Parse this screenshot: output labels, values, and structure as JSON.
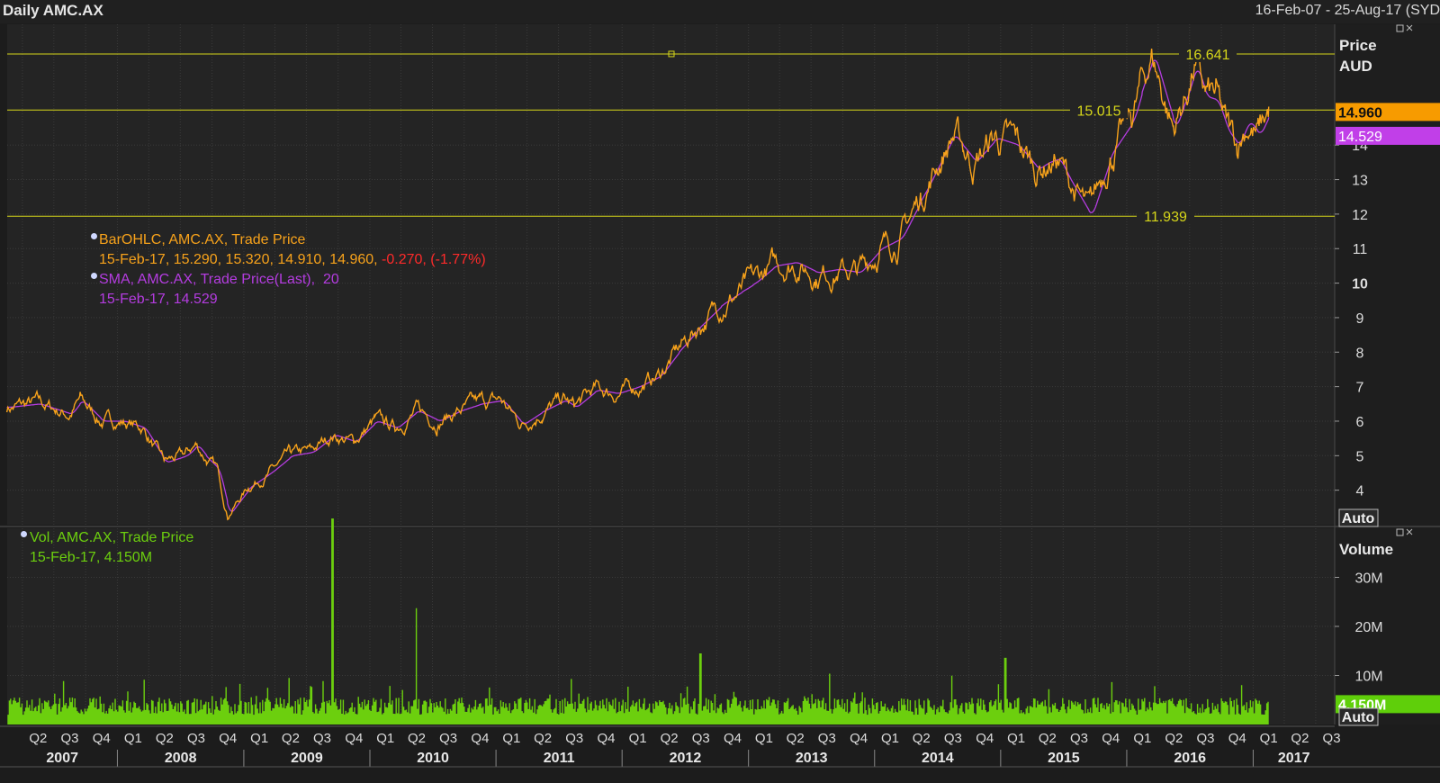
{
  "window": {
    "title": "Daily AMC.AX",
    "date_range": "16-Feb-07 - 25-Aug-17 (SYD"
  },
  "colors": {
    "background": "#1c1c1c",
    "plot_bg": "#242424",
    "price": "#f7a21b",
    "sma": "#b43ce0",
    "volume": "#6ccf0e",
    "hline": "#d6d61a",
    "loss": "#ff2a2a"
  },
  "legends": {
    "ohlc_name": "BarOHLC, AMC.AX, Trade Price",
    "ohlc_values": "15-Feb-17, 15.290, 15.320, 14.910, 14.960, ",
    "ohlc_change": "-0.270, (-1.77%)",
    "sma_name": "SMA, AMC.AX, Trade Price(Last),",
    "sma_period": "20",
    "sma_values": "15-Feb-17, 14.529",
    "vol_name": "Vol, AMC.AX, Trade Price",
    "vol_values": "15-Feb-17, 4.150M"
  },
  "price_axis": {
    "title_line1": "Price",
    "title_line2": "AUD",
    "auto_label": "Auto",
    "last_price_label": "14.960",
    "sma_label": "14.529"
  },
  "volume_axis": {
    "title": "Volume",
    "auto_label": "Auto",
    "last_volume_label": "4.150M"
  },
  "chart_data": [
    {
      "type": "line",
      "title": "Daily AMC.AX",
      "ylabel": "Price AUD",
      "ylim": [
        3.0,
        17.5
      ],
      "y_ticks": [
        4,
        5,
        6,
        7,
        8,
        9,
        10,
        11,
        12,
        13,
        14
      ],
      "y_tick_labels": [
        "4",
        "5",
        "6",
        "7",
        "8",
        "9",
        "10",
        "11",
        "12",
        "13",
        "14"
      ],
      "x_range": [
        "2007-02-16",
        "2017-08-25"
      ],
      "horizontal_lines": [
        {
          "value": 16.641,
          "label": "16.641"
        },
        {
          "value": 15.015,
          "label": "15.015"
        },
        {
          "value": 11.939,
          "label": "11.939"
        }
      ],
      "last_price": 14.96,
      "last_sma": 14.529,
      "series": [
        {
          "name": "BarOHLC, AMC.AX, Trade Price",
          "x": [
            "2007-02",
            "2007-05",
            "2007-08",
            "2007-09",
            "2007-11",
            "2008-01",
            "2008-03",
            "2008-05",
            "2008-07",
            "2008-08",
            "2008-09",
            "2008-10",
            "2008-11",
            "2009-01",
            "2009-03",
            "2009-05",
            "2009-07",
            "2009-09",
            "2009-11",
            "2010-01",
            "2010-03",
            "2010-05",
            "2010-07",
            "2010-09",
            "2010-11",
            "2011-01",
            "2011-03",
            "2011-05",
            "2011-07",
            "2011-08",
            "2011-10",
            "2011-12",
            "2012-02",
            "2012-04",
            "2012-06",
            "2012-08",
            "2012-10",
            "2012-12",
            "2013-01",
            "2013-03",
            "2013-05",
            "2013-07",
            "2013-09",
            "2013-11",
            "2014-01",
            "2014-03",
            "2014-05",
            "2014-07",
            "2014-08",
            "2014-09",
            "2014-10",
            "2014-12",
            "2015-02",
            "2015-04",
            "2015-05",
            "2015-06",
            "2015-07",
            "2015-09",
            "2015-11",
            "2016-01",
            "2016-02",
            "2016-03",
            "2016-05",
            "2016-06",
            "2016-07",
            "2016-08",
            "2016-09",
            "2016-10",
            "2016-11",
            "2016-12",
            "2017-01",
            "2017-02"
          ],
          "values": [
            6.4,
            6.5,
            6.2,
            6.6,
            6.0,
            6.0,
            5.8,
            4.8,
            5.0,
            5.3,
            4.9,
            4.6,
            3.3,
            4.1,
            4.5,
            5.0,
            5.1,
            5.6,
            5.4,
            6.0,
            5.8,
            6.3,
            6.0,
            6.3,
            6.5,
            6.6,
            5.9,
            6.3,
            6.6,
            6.4,
            6.9,
            6.8,
            7.0,
            7.3,
            8.1,
            8.8,
            9.4,
            9.8,
            10.0,
            10.5,
            10.6,
            10.3,
            10.4,
            10.3,
            11.0,
            11.3,
            12.5,
            13.7,
            14.3,
            13.9,
            13.5,
            14.2,
            14.0,
            13.3,
            13.5,
            13.6,
            13.0,
            11.94,
            13.8,
            14.7,
            15.8,
            16.6,
            14.5,
            15.3,
            16.3,
            15.4,
            15.3,
            14.4,
            14.0,
            14.7,
            14.3,
            14.96
          ]
        },
        {
          "name": "SMA, AMC.AX, Trade Price(Last), 20",
          "last_value": 14.529
        }
      ]
    },
    {
      "type": "bar",
      "title": "Vol, AMC.AX, Trade Price",
      "ylabel": "Volume",
      "ylim": [
        0,
        40000000
      ],
      "y_ticks": [
        10000000,
        20000000,
        30000000
      ],
      "y_tick_labels": [
        "10M",
        "20M",
        "30M"
      ],
      "last_volume": 4150000,
      "peaks": [
        {
          "x": "2009-09",
          "value": 42000000
        },
        {
          "x": "2010-05",
          "value": 23700000
        },
        {
          "x": "2012-08",
          "value": 14500000
        },
        {
          "x": "2015-01",
          "value": 13600000
        }
      ]
    }
  ],
  "x_axis": {
    "quarters": [
      "Q2",
      "Q3",
      "Q4",
      "Q1",
      "Q2",
      "Q3",
      "Q4",
      "Q1",
      "Q2",
      "Q3",
      "Q4",
      "Q1",
      "Q2",
      "Q3",
      "Q4",
      "Q1",
      "Q2",
      "Q3",
      "Q4",
      "Q1",
      "Q2",
      "Q3",
      "Q4",
      "Q1",
      "Q2",
      "Q3",
      "Q4",
      "Q1",
      "Q2",
      "Q3",
      "Q4",
      "Q1",
      "Q2",
      "Q3",
      "Q4",
      "Q1",
      "Q2",
      "Q3",
      "Q4",
      "Q1",
      "Q2",
      "Q3"
    ],
    "years": [
      "2007",
      "2008",
      "2009",
      "2010",
      "2011",
      "2012",
      "2013",
      "2014",
      "2015",
      "2016",
      "2017"
    ]
  }
}
